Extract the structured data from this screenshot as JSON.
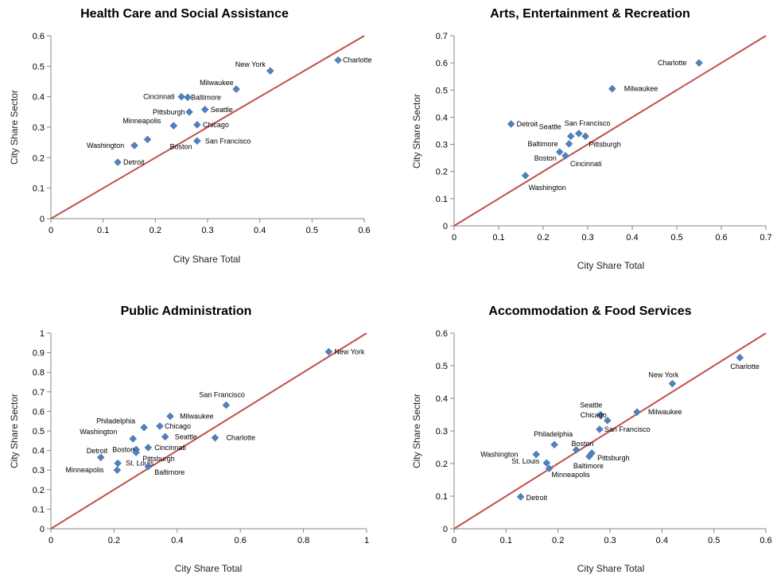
{
  "chart_data": [
    {
      "type": "scatter",
      "title": "Health Care and Social Assistance",
      "xlabel": "City Share Total",
      "ylabel": "City Share Sector",
      "xlim": [
        0,
        0.6
      ],
      "ylim": [
        0,
        0.6
      ],
      "xticks": [
        "0",
        "0.1",
        "0.2",
        "0.3",
        "0.4",
        "0.5",
        "0.6"
      ],
      "yticks": [
        "0",
        "0.1",
        "0.2",
        "0.3",
        "0.4",
        "0.5",
        "0.6"
      ],
      "reference_line": [
        [
          0,
          0
        ],
        [
          0.6,
          0.6
        ]
      ],
      "points": [
        {
          "label": "Charlotte",
          "x": 0.55,
          "y": 0.52
        },
        {
          "label": "New York",
          "x": 0.42,
          "y": 0.485
        },
        {
          "label": "Milwaukee",
          "x": 0.355,
          "y": 0.425
        },
        {
          "label": "Cincinnati",
          "x": 0.25,
          "y": 0.4
        },
        {
          "label": "Baltimore",
          "x": 0.262,
          "y": 0.398
        },
        {
          "label": "Pittsburgh",
          "x": 0.265,
          "y": 0.35
        },
        {
          "label": "Seattle",
          "x": 0.295,
          "y": 0.358
        },
        {
          "label": "Chicago",
          "x": 0.28,
          "y": 0.308
        },
        {
          "label": "Minneapolis",
          "x": 0.235,
          "y": 0.305
        },
        {
          "label": "Boston",
          "x": 0.185,
          "y": 0.26
        },
        {
          "label": "San Francisco",
          "x": 0.28,
          "y": 0.255
        },
        {
          "label": "Washington",
          "x": 0.16,
          "y": 0.24
        },
        {
          "label": "Detroit",
          "x": 0.128,
          "y": 0.185
        }
      ]
    },
    {
      "type": "scatter",
      "title": "Arts, Entertainment & Recreation",
      "xlabel": "City Share Total",
      "ylabel": "City Share Sector",
      "xlim": [
        0,
        0.7
      ],
      "ylim": [
        0,
        0.7
      ],
      "xticks": [
        "0",
        "0.1",
        "0.2",
        "0.3",
        "0.4",
        "0.5",
        "0.6",
        "0.7"
      ],
      "yticks": [
        "0",
        "0.1",
        "0.2",
        "0.3",
        "0.4",
        "0.5",
        "0.6",
        "0.7"
      ],
      "reference_line": [
        [
          0,
          0
        ],
        [
          0.7,
          0.7
        ]
      ],
      "points": [
        {
          "label": "Charlotte",
          "x": 0.55,
          "y": 0.6
        },
        {
          "label": "Milwaukee",
          "x": 0.355,
          "y": 0.505
        },
        {
          "label": "Detroit",
          "x": 0.128,
          "y": 0.375
        },
        {
          "label": "San Francisco",
          "x": 0.28,
          "y": 0.34
        },
        {
          "label": "Seattle",
          "x": 0.262,
          "y": 0.33
        },
        {
          "label": "Pittsburgh",
          "x": 0.295,
          "y": 0.33
        },
        {
          "label": "Baltimore",
          "x": 0.258,
          "y": 0.302
        },
        {
          "label": "Boston",
          "x": 0.237,
          "y": 0.272
        },
        {
          "label": "Cincinnati",
          "x": 0.25,
          "y": 0.258
        },
        {
          "label": "Washington",
          "x": 0.16,
          "y": 0.185
        }
      ]
    },
    {
      "type": "scatter",
      "title": "Public Administration",
      "xlabel": "City Share Total",
      "ylabel": "City Share Sector",
      "xlim": [
        0,
        1
      ],
      "ylim": [
        0,
        1
      ],
      "xticks": [
        "0",
        "0.2",
        "0.4",
        "0.6",
        "0.8",
        "1"
      ],
      "yticks": [
        "0",
        "0.1",
        "0.2",
        "0.3",
        "0.4",
        "0.5",
        "0.6",
        "0.7",
        "0.8",
        "0.9",
        "1"
      ],
      "reference_line": [
        [
          0,
          0
        ],
        [
          1,
          1
        ]
      ],
      "points": [
        {
          "label": "New York",
          "x": 0.88,
          "y": 0.905
        },
        {
          "label": "San Francisco",
          "x": 0.555,
          "y": 0.632
        },
        {
          "label": "Milwaukee",
          "x": 0.378,
          "y": 0.575
        },
        {
          "label": "Philadelphia",
          "x": 0.295,
          "y": 0.518
        },
        {
          "label": "Chicago",
          "x": 0.345,
          "y": 0.525
        },
        {
          "label": "Washington",
          "x": 0.26,
          "y": 0.46
        },
        {
          "label": "Seattle",
          "x": 0.362,
          "y": 0.47
        },
        {
          "label": "Charlotte",
          "x": 0.52,
          "y": 0.465
        },
        {
          "label": "Cincinnati",
          "x": 0.308,
          "y": 0.415
        },
        {
          "label": "Boston",
          "x": 0.27,
          "y": 0.405
        },
        {
          "label": "Pittsburgh",
          "x": 0.27,
          "y": 0.39
        },
        {
          "label": "Detroit",
          "x": 0.158,
          "y": 0.365
        },
        {
          "label": "St. Louis",
          "x": 0.212,
          "y": 0.335
        },
        {
          "label": "Baltimore",
          "x": 0.308,
          "y": 0.318
        },
        {
          "label": "Minneapolis",
          "x": 0.21,
          "y": 0.3
        }
      ]
    },
    {
      "type": "scatter",
      "title": "Accommodation & Food Services",
      "xlabel": "City Share Total",
      "ylabel": "City Share Sector",
      "xlim": [
        0,
        0.6
      ],
      "ylim": [
        0,
        0.6
      ],
      "xticks": [
        "0",
        "0.1",
        "0.2",
        "0.3",
        "0.4",
        "0.5",
        "0.6"
      ],
      "yticks": [
        "0",
        "0.1",
        "0.2",
        "0.3",
        "0.4",
        "0.5",
        "0.6"
      ],
      "reference_line": [
        [
          0,
          0
        ],
        [
          0.6,
          0.6
        ]
      ],
      "points": [
        {
          "label": "Charlotte",
          "x": 0.55,
          "y": 0.525
        },
        {
          "label": "New York",
          "x": 0.42,
          "y": 0.445
        },
        {
          "label": "Milwaukee",
          "x": 0.352,
          "y": 0.358
        },
        {
          "label": "Seattle",
          "x": 0.282,
          "y": 0.35
        },
        {
          "label": "Chicago",
          "x": 0.295,
          "y": 0.332
        },
        {
          "label": "San Francisco",
          "x": 0.28,
          "y": 0.305
        },
        {
          "label": "Philadelphia",
          "x": 0.193,
          "y": 0.258
        },
        {
          "label": "Boston",
          "x": 0.235,
          "y": 0.242
        },
        {
          "label": "Washington",
          "x": 0.158,
          "y": 0.228
        },
        {
          "label": "Pittsburgh",
          "x": 0.265,
          "y": 0.232
        },
        {
          "label": "Baltimore",
          "x": 0.26,
          "y": 0.222
        },
        {
          "label": "St. Louis",
          "x": 0.178,
          "y": 0.202
        },
        {
          "label": "Minneapolis",
          "x": 0.183,
          "y": 0.185
        },
        {
          "label": "Detroit",
          "x": 0.128,
          "y": 0.098
        }
      ]
    }
  ]
}
